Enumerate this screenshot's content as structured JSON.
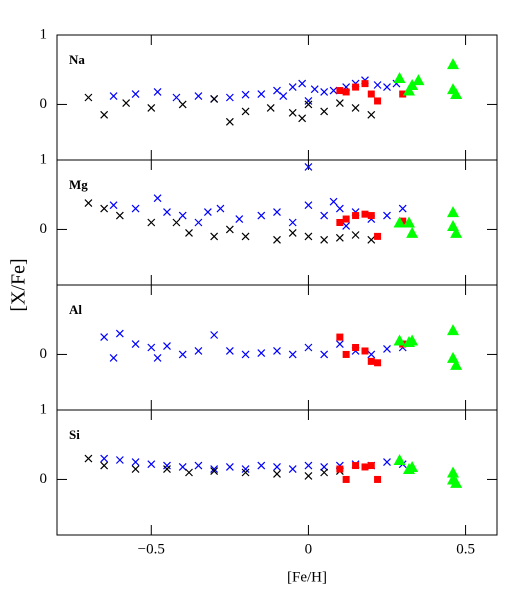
{
  "chart_data": {
    "type": "scatter",
    "xlabel": "[Fe/H]",
    "ylabel": "[X/Fe]",
    "xlim": [
      -0.8,
      0.6
    ],
    "xticks": [
      {
        "value": -0.5,
        "label": "−0.5"
      },
      0,
      0.5
    ],
    "panels": [
      {
        "label": "Na",
        "ylim": [
          -0.8,
          1
        ],
        "yticks": [
          0,
          1
        ],
        "series": [
          {
            "color": "#0000ff",
            "marker": "x",
            "x": [
              -0.62,
              -0.55,
              -0.48,
              -0.42,
              -0.35,
              -0.3,
              -0.25,
              -0.2,
              -0.15,
              -0.1,
              -0.05,
              -0.02,
              0.02,
              0.05,
              0.08,
              0.12,
              0.15,
              0.18,
              0.22,
              0.25,
              0.28,
              -0.08,
              0.0
            ],
            "y": [
              0.12,
              0.15,
              0.18,
              0.1,
              0.12,
              0.08,
              0.1,
              0.14,
              0.15,
              0.2,
              0.25,
              0.3,
              0.22,
              0.18,
              0.2,
              0.25,
              0.3,
              0.35,
              0.28,
              0.25,
              0.3,
              0.12,
              0.05
            ]
          },
          {
            "color": "#000000",
            "marker": "x",
            "x": [
              -0.7,
              -0.65,
              -0.58,
              -0.5,
              -0.4,
              -0.3,
              -0.2,
              -0.12,
              -0.05,
              0.0,
              0.05,
              0.1,
              0.15,
              0.2,
              -0.25,
              -0.02
            ],
            "y": [
              0.1,
              -0.15,
              0.02,
              -0.05,
              0.0,
              0.08,
              -0.1,
              -0.05,
              -0.12,
              0.0,
              -0.1,
              0.02,
              -0.05,
              -0.15,
              -0.25,
              -0.2
            ]
          },
          {
            "color": "#ff0000",
            "marker": "square",
            "x": [
              0.1,
              0.12,
              0.15,
              0.18,
              0.2,
              0.22,
              0.3
            ],
            "y": [
              0.2,
              0.18,
              0.25,
              0.3,
              0.15,
              0.05,
              0.15
            ]
          },
          {
            "color": "#00ff00",
            "marker": "triangle",
            "x": [
              0.29,
              0.32,
              0.33,
              0.35,
              0.46,
              0.46,
              0.47
            ],
            "y": [
              0.38,
              0.2,
              0.28,
              0.35,
              0.58,
              0.22,
              0.15
            ]
          }
        ]
      },
      {
        "label": "Mg",
        "ylim": [
          -0.8,
          1
        ],
        "yticks": [
          0,
          1
        ],
        "series": [
          {
            "color": "#0000ff",
            "marker": "x",
            "x": [
              -0.62,
              -0.55,
              -0.48,
              -0.45,
              -0.4,
              -0.32,
              -0.28,
              -0.22,
              -0.15,
              -0.1,
              -0.05,
              0.0,
              0.05,
              0.1,
              0.15,
              0.2,
              0.25,
              0.3,
              -0.35,
              0.0,
              0.12,
              0.08
            ],
            "y": [
              0.35,
              0.3,
              0.45,
              0.25,
              0.2,
              0.25,
              0.3,
              0.15,
              0.2,
              0.25,
              0.1,
              0.35,
              0.2,
              0.3,
              0.25,
              0.15,
              0.2,
              0.3,
              0.1,
              0.9,
              0.05,
              0.4
            ]
          },
          {
            "color": "#000000",
            "marker": "x",
            "x": [
              -0.7,
              -0.65,
              -0.6,
              -0.5,
              -0.42,
              -0.38,
              -0.3,
              -0.25,
              -0.2,
              -0.1,
              -0.05,
              0.0,
              0.05,
              0.1,
              0.15,
              0.2
            ],
            "y": [
              0.38,
              0.3,
              0.2,
              0.1,
              0.1,
              -0.05,
              -0.1,
              0.0,
              -0.1,
              -0.15,
              -0.05,
              -0.1,
              -0.15,
              -0.12,
              -0.08,
              -0.15
            ]
          },
          {
            "color": "#ff0000",
            "marker": "square",
            "x": [
              0.1,
              0.12,
              0.15,
              0.18,
              0.2,
              0.22,
              0.3
            ],
            "y": [
              0.1,
              0.15,
              0.2,
              0.22,
              0.2,
              -0.1,
              0.12
            ]
          },
          {
            "color": "#00ff00",
            "marker": "triangle",
            "x": [
              0.29,
              0.32,
              0.33,
              0.46,
              0.46,
              0.47
            ],
            "y": [
              0.1,
              0.1,
              -0.05,
              0.25,
              0.05,
              -0.05
            ]
          }
        ]
      },
      {
        "label": "Al",
        "ylim": [
          -0.8,
          1
        ],
        "yticks": [
          0
        ],
        "series": [
          {
            "color": "#0000ff",
            "marker": "x",
            "x": [
              -0.65,
              -0.6,
              -0.55,
              -0.5,
              -0.45,
              -0.4,
              -0.35,
              -0.3,
              -0.25,
              -0.2,
              -0.15,
              -0.1,
              -0.05,
              0.0,
              0.05,
              0.1,
              0.15,
              0.2,
              0.25,
              0.3,
              -0.62,
              -0.48
            ],
            "y": [
              0.25,
              0.3,
              0.15,
              0.1,
              0.12,
              0.0,
              0.05,
              0.28,
              0.05,
              0.0,
              0.02,
              0.05,
              0.0,
              0.1,
              0.0,
              0.15,
              0.05,
              0.0,
              0.08,
              0.1,
              -0.05,
              -0.05
            ]
          },
          {
            "color": "#ff0000",
            "marker": "square",
            "x": [
              0.1,
              0.12,
              0.15,
              0.18,
              0.2,
              0.22,
              0.3
            ],
            "y": [
              0.25,
              0.0,
              0.1,
              0.05,
              -0.1,
              -0.12,
              0.15
            ]
          },
          {
            "color": "#00ff00",
            "marker": "triangle",
            "x": [
              0.29,
              0.32,
              0.33,
              0.46,
              0.46,
              0.47
            ],
            "y": [
              0.2,
              0.18,
              0.2,
              0.35,
              -0.05,
              -0.15
            ]
          }
        ]
      },
      {
        "label": "Si",
        "ylim": [
          -0.8,
          1
        ],
        "yticks": [
          0,
          1
        ],
        "series": [
          {
            "color": "#0000ff",
            "marker": "x",
            "x": [
              -0.65,
              -0.6,
              -0.55,
              -0.5,
              -0.45,
              -0.4,
              -0.35,
              -0.3,
              -0.25,
              -0.2,
              -0.15,
              -0.1,
              -0.05,
              0.0,
              0.05,
              0.1,
              0.15,
              0.2,
              0.25,
              0.3
            ],
            "y": [
              0.3,
              0.28,
              0.25,
              0.22,
              0.2,
              0.18,
              0.2,
              0.15,
              0.18,
              0.15,
              0.2,
              0.18,
              0.15,
              0.2,
              0.18,
              0.2,
              0.22,
              0.2,
              0.25,
              0.22
            ]
          },
          {
            "color": "#000000",
            "marker": "x",
            "x": [
              -0.7,
              -0.65,
              -0.55,
              -0.45,
              -0.38,
              -0.3,
              -0.2,
              -0.1,
              0.0,
              0.05,
              0.1
            ],
            "y": [
              0.3,
              0.2,
              0.15,
              0.15,
              0.1,
              0.12,
              0.1,
              0.08,
              0.05,
              0.1,
              0.12
            ]
          },
          {
            "color": "#ff0000",
            "marker": "square",
            "x": [
              0.1,
              0.12,
              0.15,
              0.18,
              0.2,
              0.22
            ],
            "y": [
              0.15,
              0.0,
              0.2,
              0.18,
              0.2,
              0.0
            ]
          },
          {
            "color": "#00ff00",
            "marker": "triangle",
            "x": [
              0.29,
              0.32,
              0.33,
              0.46,
              0.46,
              0.47
            ],
            "y": [
              0.28,
              0.15,
              0.18,
              0.1,
              0.0,
              -0.05
            ]
          }
        ]
      }
    ]
  }
}
